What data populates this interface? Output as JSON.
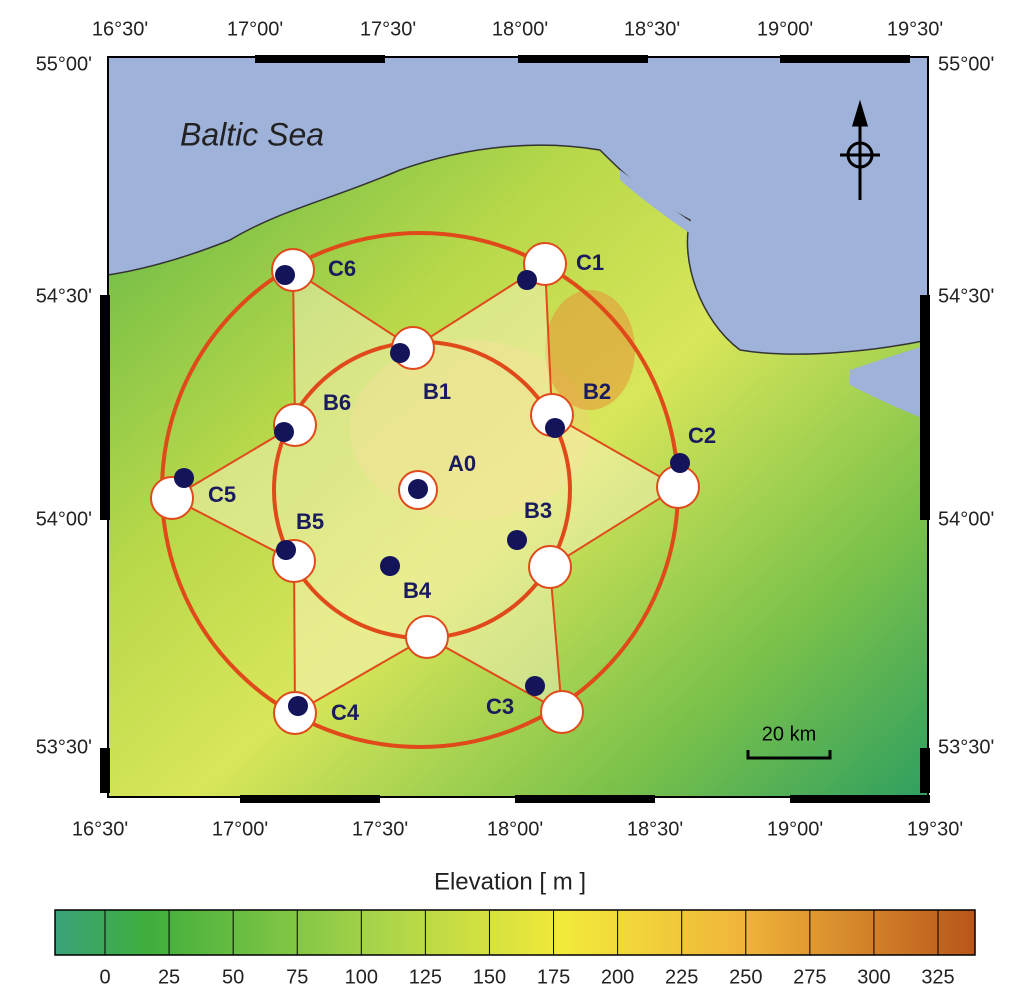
{
  "map": {
    "sea_label": "Baltic Sea",
    "lon_top": [
      "16°30'",
      "17°00'",
      "17°30'",
      "18°00'",
      "18°30'",
      "19°00'",
      "19°30'"
    ],
    "lon_bottom": [
      "16°30'",
      "17°00'",
      "17°30'",
      "18°00'",
      "18°30'",
      "19°00'",
      "19°30'"
    ],
    "lat_left": [
      "55°00'",
      "54°30'",
      "54°00'",
      "53°30'"
    ],
    "lat_right": [
      "55°00'",
      "54°30'",
      "54°00'",
      "53°30'"
    ],
    "stations": [
      "A0",
      "B1",
      "B2",
      "B3",
      "B4",
      "B5",
      "B6",
      "C1",
      "C2",
      "C3",
      "C4",
      "C5",
      "C6"
    ],
    "scale_bar": "20 km",
    "legend": {
      "title": "Elevation  [ m ]",
      "ticks": [
        0,
        25,
        50,
        75,
        100,
        125,
        150,
        175,
        200,
        225,
        250,
        275,
        300,
        325
      ]
    }
  }
}
